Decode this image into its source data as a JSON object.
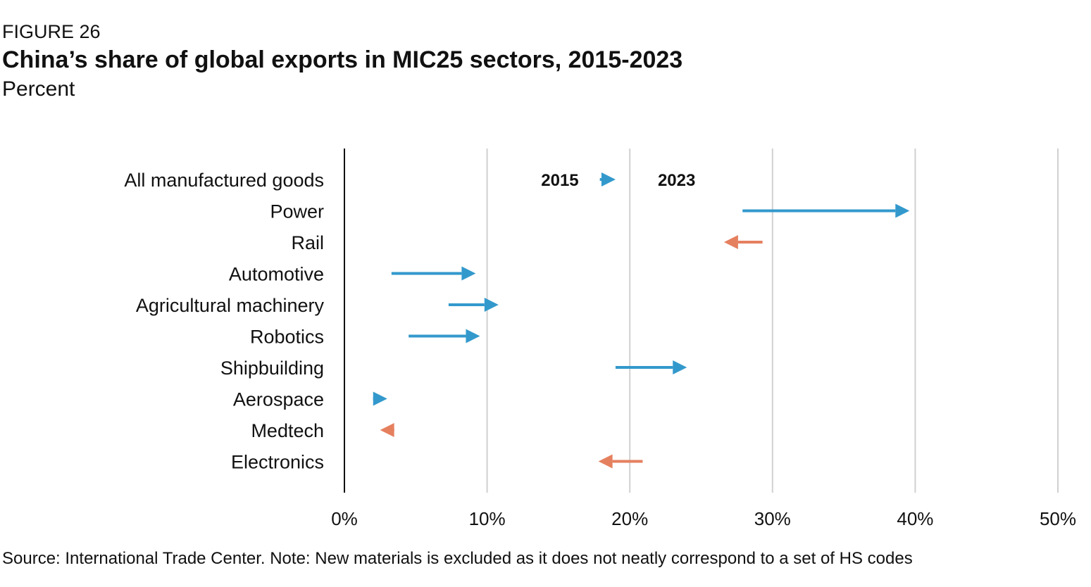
{
  "figure_label": "FIGURE 26",
  "chart_data": {
    "type": "arrow-dumbbell",
    "title": "China’s share of global exports in MIC25 sectors, 2015-2023",
    "subtitle": "Percent",
    "legend": {
      "start": "2015",
      "end": "2023"
    },
    "xlim": [
      0,
      50
    ],
    "xticks": [
      0,
      10,
      20,
      30,
      40,
      50
    ],
    "xtick_labels": [
      "0%",
      "10%",
      "20%",
      "30%",
      "40%",
      "50%"
    ],
    "grid": true,
    "categories": [
      "All manufactured goods",
      "Power",
      "Rail",
      "Automotive",
      "Agricultural machinery",
      "Robotics",
      "Shipbuilding",
      "Aerospace",
      "Medtech",
      "Electronics"
    ],
    "series": [
      {
        "name": "2015",
        "values": [
          17.9,
          27.9,
          29.3,
          3.3,
          7.3,
          4.5,
          19.0,
          2.0,
          3.5,
          20.9
        ]
      },
      {
        "name": "2023",
        "values": [
          19.0,
          39.6,
          26.6,
          9.2,
          10.8,
          9.5,
          24.0,
          3.0,
          2.5,
          17.8
        ]
      }
    ],
    "colors": {
      "increase": "#3399cc",
      "decrease": "#e5805f",
      "grid": "#d0d0d0",
      "axis": "#111111"
    }
  },
  "source": "Source: International Trade Center. Note: New materials is excluded as it does not neatly correspond to a set of HS codes"
}
